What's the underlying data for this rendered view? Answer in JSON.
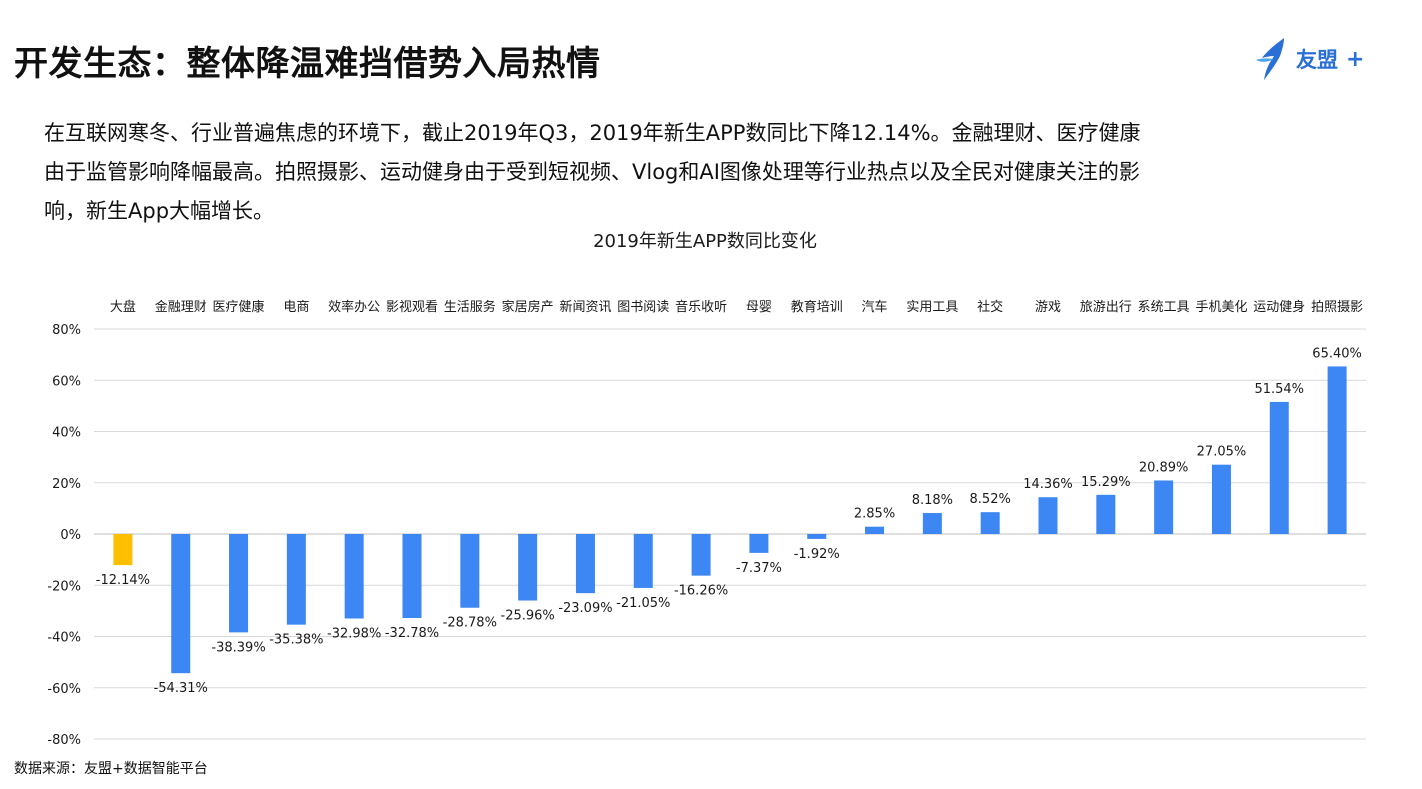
{
  "header": {
    "title": "开发生态：整体降温难挡借势入局热情",
    "brand_name": "友盟",
    "brand_plus": "+"
  },
  "description": {
    "line1": "在互联网寒冬、行业普遍焦虑的环境下，截止2019年Q3，2019年新生APP数同比下降12.14%。金融理财、医疗健康",
    "line2": "由于监管影响降幅最高。拍照摄影、运动健身由于受到短视频、Vlog和AI图像处理等行业热点以及全民对健康关注的影",
    "line3": "响，新生App大幅增长。"
  },
  "footer": {
    "source": "数据来源：友盟+数据智能平台"
  },
  "colors": {
    "highlight": "#FDBF00",
    "bar": "#3D87F5",
    "brand": "#2A6FD6",
    "grid": "#D9D9D9"
  },
  "chart_data": {
    "type": "bar",
    "title": "2019年新生APP数同比变化",
    "xlabel": "",
    "ylabel": "",
    "ylim": [
      -80,
      80
    ],
    "yticks": [
      "80%",
      "60%",
      "40%",
      "20%",
      "0%",
      "-20%",
      "-40%",
      "-60%",
      "-80%"
    ],
    "ytick_values": [
      80,
      60,
      40,
      20,
      0,
      -20,
      -40,
      -60,
      -80
    ],
    "categories": [
      "大盘",
      "金融理财",
      "医疗健康",
      "电商",
      "效率办公",
      "影视观看",
      "生活服务",
      "家居房产",
      "新闻资讯",
      "图书阅读",
      "音乐收听",
      "母婴",
      "教育培训",
      "汽车",
      "实用工具",
      "社交",
      "游戏",
      "旅游出行",
      "系统工具",
      "手机美化",
      "运动健身",
      "拍照摄影"
    ],
    "values": [
      -12.14,
      -54.31,
      -38.39,
      -35.38,
      -32.98,
      -32.78,
      -28.78,
      -25.96,
      -23.09,
      -21.05,
      -16.26,
      -7.37,
      -1.92,
      2.85,
      8.18,
      8.52,
      14.36,
      15.29,
      20.89,
      27.05,
      51.54,
      65.4
    ],
    "labels": [
      "-12.14%",
      "-54.31%",
      "-38.39%",
      "-35.38%",
      "-32.98%",
      "-32.78%",
      "-28.78%",
      "-25.96%",
      "-23.09%",
      "-21.05%",
      "-16.26%",
      "-7.37%",
      "-1.92%",
      "2.85%",
      "8.18%",
      "8.52%",
      "14.36%",
      "15.29%",
      "20.89%",
      "27.05%",
      "51.54%",
      "65.40%"
    ],
    "highlight_index": 0,
    "grid": true,
    "category_axis_position": "top"
  }
}
